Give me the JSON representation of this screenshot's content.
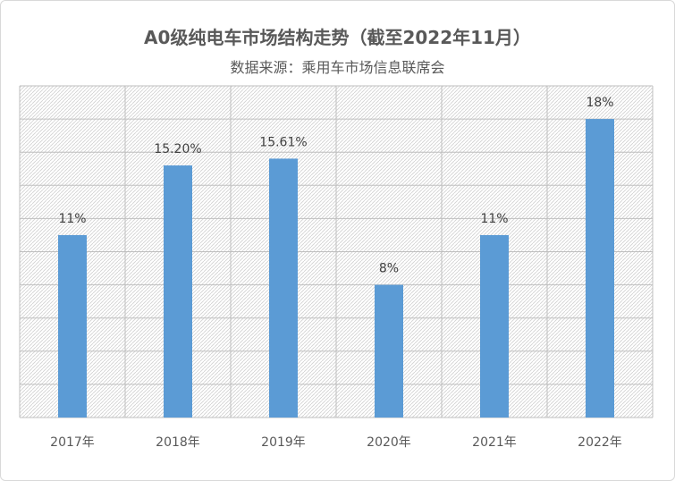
{
  "chart_data": {
    "type": "bar",
    "title": "A0级纯电车市场结构走势（截至2022年11月）",
    "subtitle": "数据来源：乘用车市场信息联席会",
    "categories": [
      "2017年",
      "2018年",
      "2019年",
      "2020年",
      "2021年",
      "2022年"
    ],
    "values": [
      11,
      15.2,
      15.61,
      8,
      11,
      18
    ],
    "data_labels": [
      "11%",
      "15.20%",
      "15.61%",
      "8%",
      "11%",
      "18%"
    ],
    "ylim": [
      0,
      20
    ],
    "grid": true,
    "bar_color": "#5b9bd5"
  }
}
